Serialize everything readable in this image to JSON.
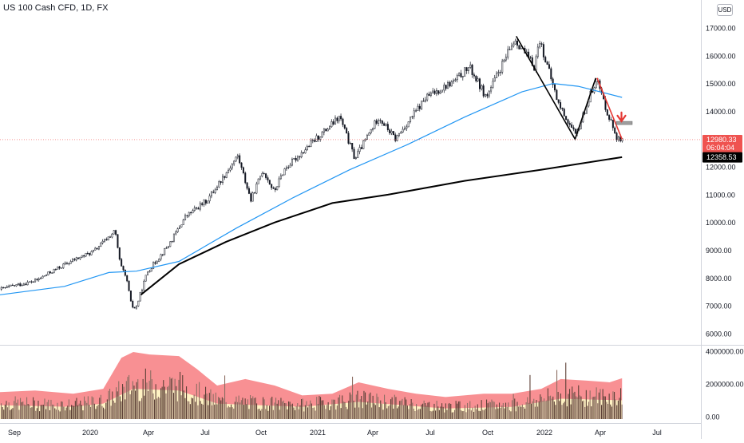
{
  "header": {
    "symbol": "US 100 Cash CFD",
    "interval": "1D",
    "exchange": "FX",
    "currency": "USD"
  },
  "colors": {
    "up_candle": "#ffffff",
    "down_candle": "#131722",
    "ma_blue": "#2196f3",
    "ma_black": "#000000",
    "trendline_red": "#e53935",
    "price_line": "#ef5350",
    "vol_band": "#f77c80",
    "vol_inner": "#fff3c4",
    "vol_bar": "#5d4037"
  },
  "chart_data": [
    {
      "type": "candlestick",
      "x_ticks": [
        "Sep",
        "2020",
        "Apr",
        "Jul",
        "Oct",
        "2021",
        "Apr",
        "Jul",
        "Oct",
        "2022",
        "Apr",
        "Jul"
      ],
      "y_ticks": [
        "6000.00",
        "7000.00",
        "8000.00",
        "9000.00",
        "10000.00",
        "11000.00",
        "12000.00",
        "13000.00",
        "14000.00",
        "15000.00",
        "16000.00",
        "17000.00"
      ],
      "ylim": [
        5600,
        17600
      ],
      "close_path": [
        [
          "2019-08-20",
          7600
        ],
        [
          "2019-09-15",
          7750
        ],
        [
          "2019-10-15",
          7900
        ],
        [
          "2019-11-15",
          8300
        ],
        [
          "2019-12-15",
          8650
        ],
        [
          "2020-01-15",
          8950
        ],
        [
          "2020-02-19",
          9700
        ],
        [
          "2020-02-27",
          8500
        ],
        [
          "2020-03-09",
          7900
        ],
        [
          "2020-03-16",
          7000
        ],
        [
          "2020-03-23",
          6900
        ],
        [
          "2020-04-10",
          8200
        ],
        [
          "2020-05-15",
          9200
        ],
        [
          "2020-06-10",
          10200
        ],
        [
          "2020-07-15",
          10800
        ],
        [
          "2020-09-02",
          12400
        ],
        [
          "2020-09-23",
          10800
        ],
        [
          "2020-10-12",
          11900
        ],
        [
          "2020-10-30",
          11100
        ],
        [
          "2020-11-15",
          11900
        ],
        [
          "2020-12-31",
          12900
        ],
        [
          "2021-02-12",
          13800
        ],
        [
          "2021-03-08",
          12300
        ],
        [
          "2021-04-15",
          13800
        ],
        [
          "2021-05-12",
          13000
        ],
        [
          "2021-06-30",
          14500
        ],
        [
          "2021-08-15",
          15100
        ],
        [
          "2021-09-07",
          15600
        ],
        [
          "2021-10-04",
          14500
        ],
        [
          "2021-11-19",
          16600
        ],
        [
          "2021-12-20",
          15600
        ],
        [
          "2021-12-28",
          16600
        ],
        [
          "2022-01-27",
          14300
        ],
        [
          "2022-02-24",
          13100
        ],
        [
          "2022-03-29",
          15200
        ],
        [
          "2022-04-15",
          14000
        ],
        [
          "2022-05-02",
          13000
        ],
        [
          "2022-05-10",
          12900
        ]
      ],
      "series": [
        {
          "name": "",
          "kind": "moving-average-blue",
          "points": [
            [
              "2019-08-20",
              7400
            ],
            [
              "2019-12-01",
              7700
            ],
            [
              "2020-02-10",
              8200
            ],
            [
              "2020-03-25",
              8250
            ],
            [
              "2020-06-01",
              8600
            ],
            [
              "2020-09-01",
              9800
            ],
            [
              "2020-12-01",
              10900
            ],
            [
              "2021-03-01",
              11900
            ],
            [
              "2021-06-01",
              12800
            ],
            [
              "2021-09-01",
              13800
            ],
            [
              "2021-12-01",
              14700
            ],
            [
              "2022-01-20",
              15000
            ],
            [
              "2022-03-01",
              14900
            ],
            [
              "2022-05-10",
              14500
            ]
          ]
        },
        {
          "name": "",
          "kind": "moving-average-black",
          "points": [
            [
              "2020-04-01",
              7400
            ],
            [
              "2020-06-01",
              8500
            ],
            [
              "2020-08-15",
              9300
            ],
            [
              "2020-11-01",
              10000
            ],
            [
              "2021-02-01",
              10700
            ],
            [
              "2021-05-01",
              11000
            ],
            [
              "2021-09-01",
              11500
            ],
            [
              "2022-01-01",
              11900
            ],
            [
              "2022-05-10",
              12350
            ]
          ]
        }
      ],
      "trendlines": [
        {
          "color": "black",
          "points": [
            [
              "2021-11-22",
              16700
            ],
            [
              "2022-02-24",
              13000
            ],
            [
              "2022-03-29",
              15200
            ]
          ]
        },
        {
          "color": "red",
          "points": [
            [
              "2022-03-31",
              15200
            ],
            [
              "2022-05-10",
              13000
            ]
          ]
        }
      ],
      "price_labels": {
        "last": "12980.33",
        "countdown": "06:04:04",
        "ma": "12358.53"
      },
      "annotation": {
        "type": "down-arrow",
        "date": "2022-05-04",
        "value": 13700
      }
    },
    {
      "type": "area",
      "name": "volume",
      "y_ticks": [
        "0.00",
        "2000000.00",
        "4000000.00"
      ],
      "ylim": [
        0,
        4200000
      ],
      "upper_band": [
        [
          "2019-08-20",
          1500000
        ],
        [
          "2019-10-15",
          1600000
        ],
        [
          "2019-12-15",
          1400000
        ],
        [
          "2020-02-01",
          1700000
        ],
        [
          "2020-03-01",
          3600000
        ],
        [
          "2020-03-20",
          3950000
        ],
        [
          "2020-04-15",
          3800000
        ],
        [
          "2020-06-01",
          3700000
        ],
        [
          "2020-06-30",
          2900000
        ],
        [
          "2020-08-01",
          1900000
        ],
        [
          "2020-09-15",
          2300000
        ],
        [
          "2020-11-01",
          1900000
        ],
        [
          "2020-12-15",
          1300000
        ],
        [
          "2021-02-01",
          1400000
        ],
        [
          "2021-03-15",
          2100000
        ],
        [
          "2021-05-01",
          1700000
        ],
        [
          "2021-06-15",
          1400000
        ],
        [
          "2021-08-01",
          1200000
        ],
        [
          "2021-10-01",
          1400000
        ],
        [
          "2021-11-15",
          1400000
        ],
        [
          "2022-01-01",
          1700000
        ],
        [
          "2022-02-01",
          2300000
        ],
        [
          "2022-03-15",
          2200000
        ],
        [
          "2022-04-20",
          2100000
        ],
        [
          "2022-05-10",
          2350000
        ]
      ],
      "lower_band": [
        [
          "2019-08-20",
          700000
        ],
        [
          "2019-12-15",
          600000
        ],
        [
          "2020-02-01",
          800000
        ],
        [
          "2020-03-20",
          1700000
        ],
        [
          "2020-06-01",
          1600000
        ],
        [
          "2020-08-01",
          800000
        ],
        [
          "2020-12-15",
          600000
        ],
        [
          "2021-03-15",
          900000
        ],
        [
          "2021-08-01",
          500000
        ],
        [
          "2021-11-15",
          600000
        ],
        [
          "2022-02-01",
          1100000
        ],
        [
          "2022-05-10",
          1000000
        ]
      ]
    }
  ]
}
